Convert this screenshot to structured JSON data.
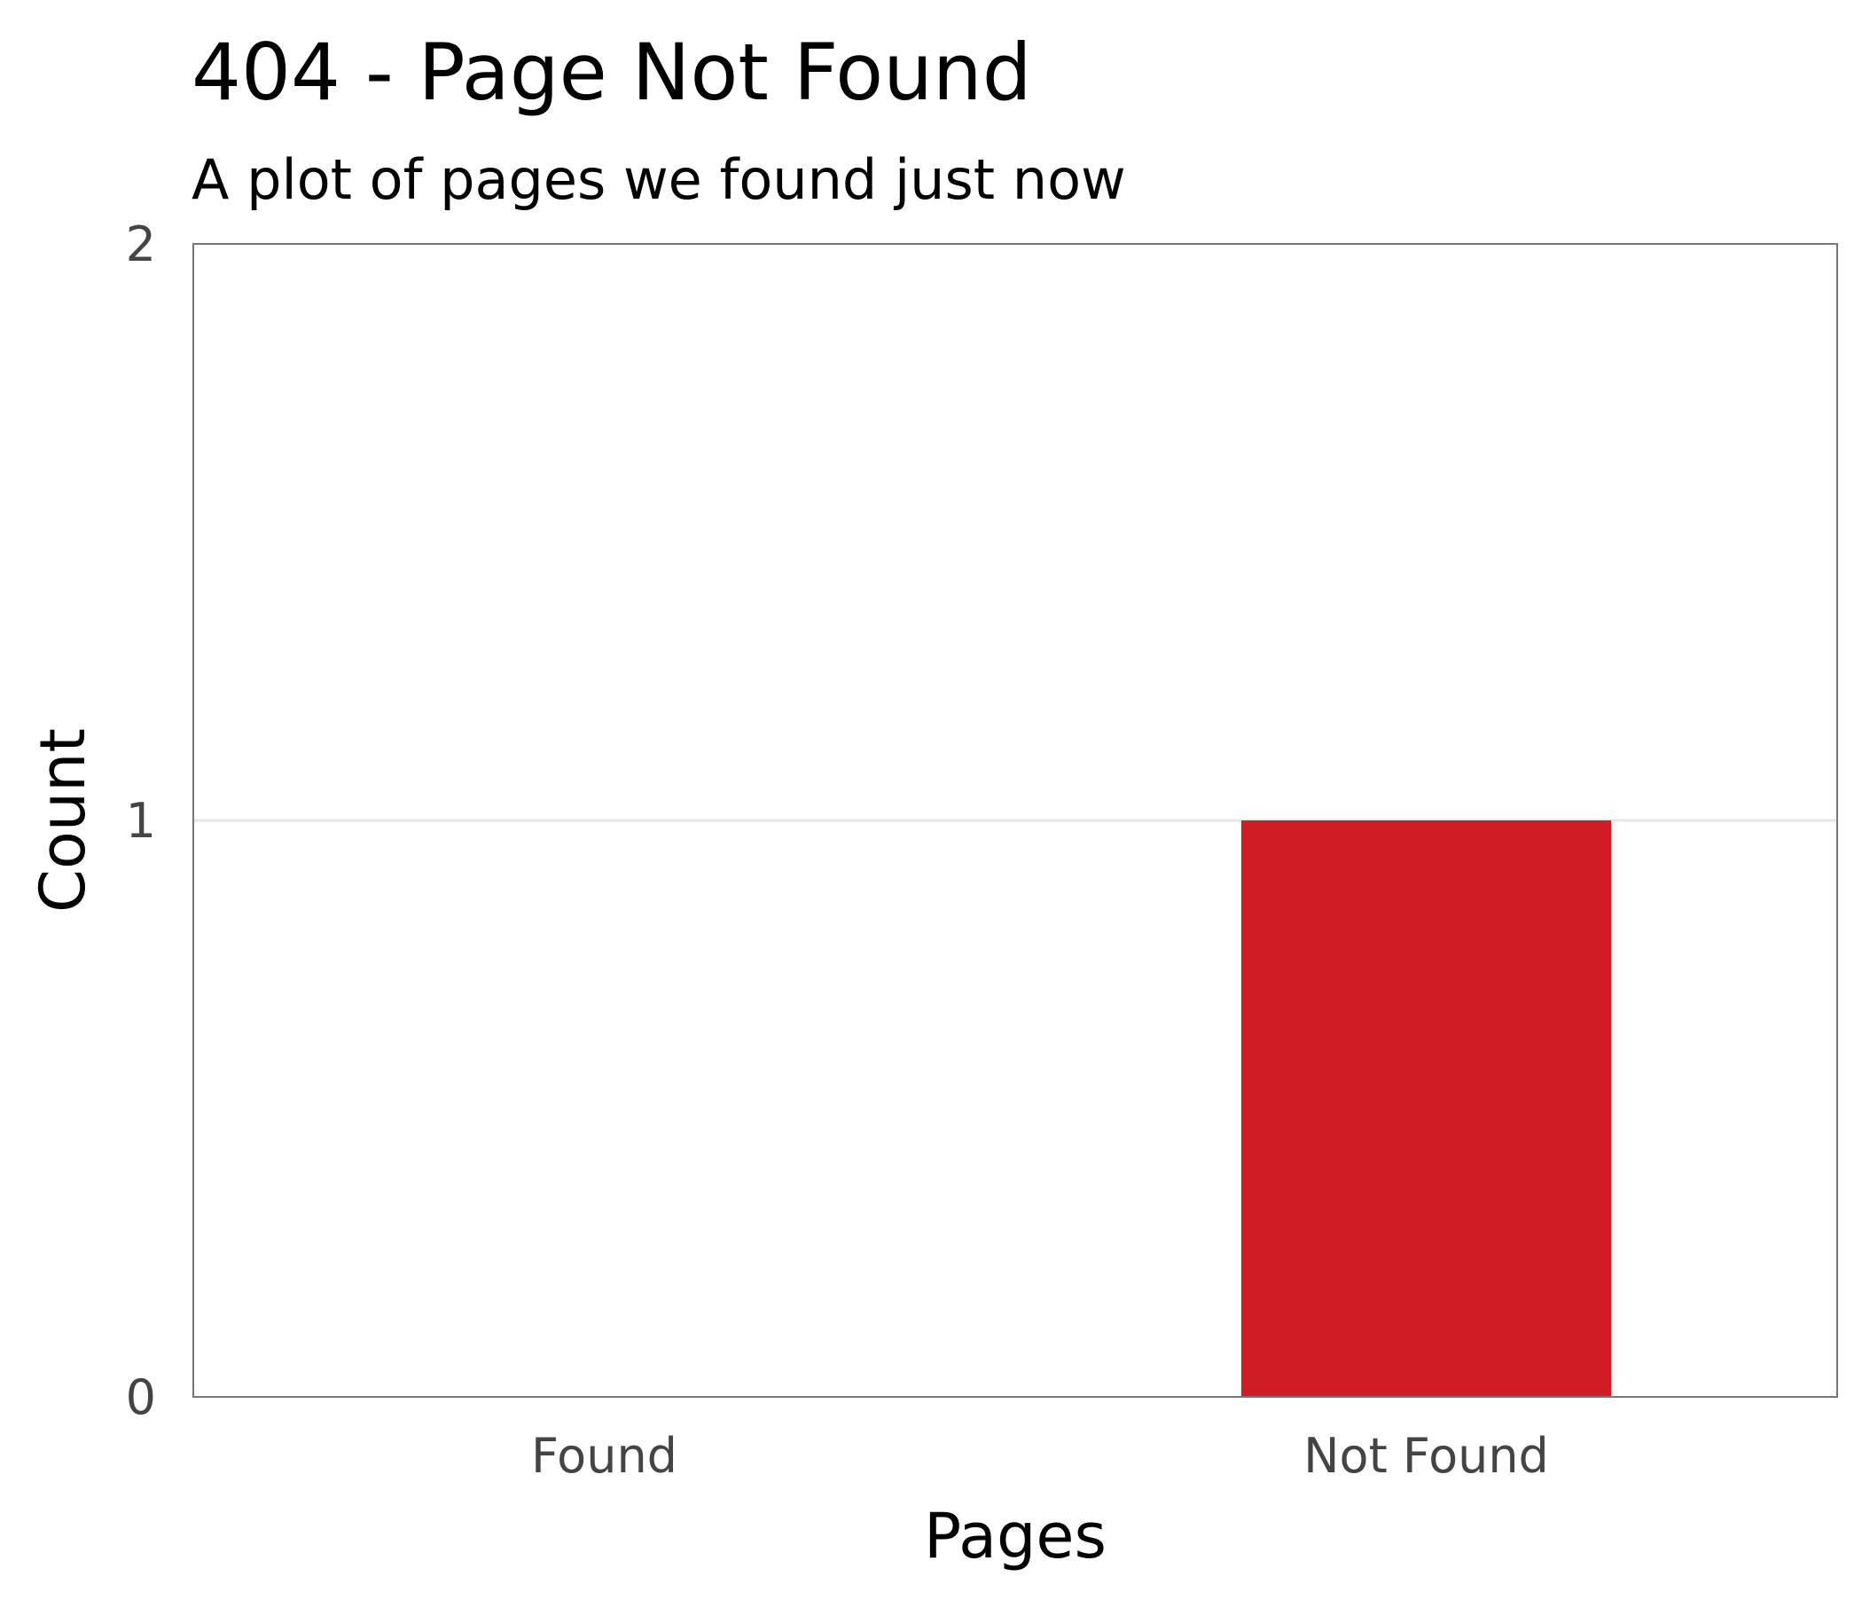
{
  "chart_data": {
    "type": "bar",
    "title": "404 - Page Not Found",
    "subtitle": "A plot of pages we found just now",
    "xlabel": "Pages",
    "ylabel": "Count",
    "categories": [
      "Found",
      "Not Found"
    ],
    "values": [
      0,
      1
    ],
    "ylim": [
      0,
      2
    ],
    "yticks": [
      "0",
      "1",
      "2"
    ],
    "grid": true,
    "legend": "none",
    "colors": {
      "bar": "#d01c24",
      "panel_border": "#777777",
      "gridline": "#e6e6e6"
    }
  }
}
